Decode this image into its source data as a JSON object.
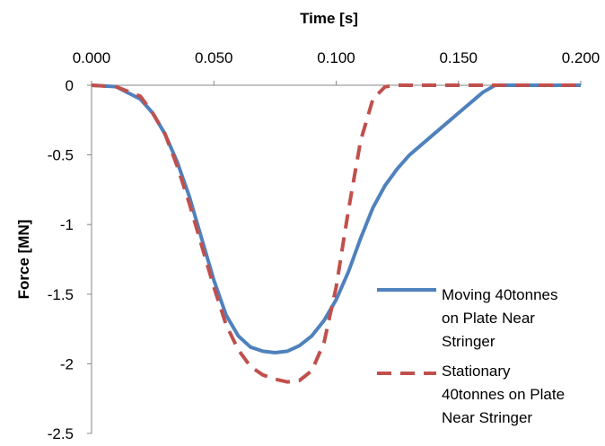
{
  "chart_data": {
    "type": "line",
    "title": "",
    "xlabel": "Time [s]",
    "ylabel": "Force [MN]",
    "x_axis_position": "top",
    "xlim": [
      0,
      0.2
    ],
    "ylim": [
      -2.5,
      0
    ],
    "x_ticks": [
      {
        "value": 0.0,
        "label": "0.000"
      },
      {
        "value": 0.05,
        "label": "0.050"
      },
      {
        "value": 0.1,
        "label": "0.100"
      },
      {
        "value": 0.15,
        "label": "0.150"
      },
      {
        "value": 0.2,
        "label": "0.200"
      }
    ],
    "y_ticks": [
      {
        "value": 0,
        "label": "0"
      },
      {
        "value": -0.5,
        "label": "-0.5"
      },
      {
        "value": -1,
        "label": "-1"
      },
      {
        "value": -1.5,
        "label": "-1.5"
      },
      {
        "value": -2,
        "label": "-2"
      },
      {
        "value": -2.5,
        "label": "-2.5"
      }
    ],
    "grid": false,
    "legend_position": "right",
    "series": [
      {
        "name": "Moving 40tonnes on Plate Near Stringer",
        "color": "#4f81bd",
        "dash": "solid",
        "x": [
          0.0,
          0.01,
          0.02,
          0.025,
          0.03,
          0.035,
          0.04,
          0.045,
          0.05,
          0.055,
          0.06,
          0.065,
          0.07,
          0.075,
          0.08,
          0.085,
          0.09,
          0.095,
          0.1,
          0.105,
          0.11,
          0.115,
          0.12,
          0.125,
          0.13,
          0.14,
          0.15,
          0.16,
          0.165,
          0.17,
          0.2
        ],
        "y": [
          0,
          -0.01,
          -0.1,
          -0.2,
          -0.35,
          -0.55,
          -0.8,
          -1.1,
          -1.4,
          -1.65,
          -1.8,
          -1.88,
          -1.91,
          -1.92,
          -1.91,
          -1.87,
          -1.8,
          -1.69,
          -1.54,
          -1.34,
          -1.1,
          -0.88,
          -0.72,
          -0.6,
          -0.5,
          -0.35,
          -0.2,
          -0.05,
          0,
          0,
          0
        ]
      },
      {
        "name": "Stationary 40tonnes on Plate Near Stringer",
        "color": "#c0504d",
        "dash": "dashed",
        "x": [
          0.0,
          0.01,
          0.02,
          0.025,
          0.03,
          0.035,
          0.04,
          0.045,
          0.05,
          0.055,
          0.06,
          0.065,
          0.07,
          0.075,
          0.08,
          0.085,
          0.09,
          0.095,
          0.1,
          0.105,
          0.11,
          0.115,
          0.12,
          0.125,
          0.13,
          0.2
        ],
        "y": [
          0,
          -0.01,
          -0.08,
          -0.2,
          -0.35,
          -0.58,
          -0.85,
          -1.15,
          -1.45,
          -1.72,
          -1.9,
          -2.02,
          -2.08,
          -2.11,
          -2.13,
          -2.12,
          -2.05,
          -1.85,
          -1.45,
          -0.9,
          -0.4,
          -0.1,
          -0.01,
          0,
          0,
          0
        ]
      }
    ]
  }
}
